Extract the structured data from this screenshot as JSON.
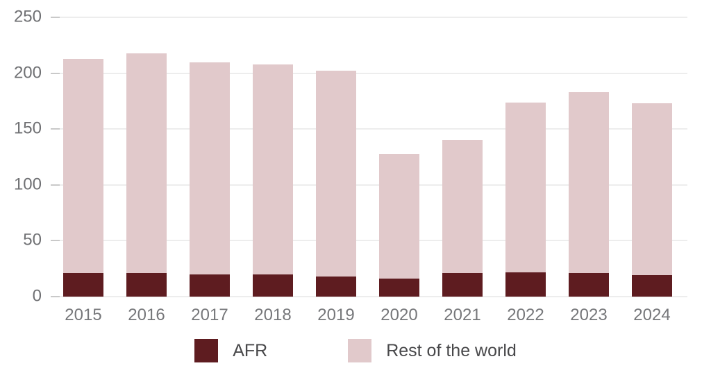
{
  "chart_data": {
    "type": "bar",
    "stacked": true,
    "title": "",
    "xlabel": "",
    "ylabel": "",
    "categories": [
      "2015",
      "2016",
      "2017",
      "2018",
      "2019",
      "2020",
      "2021",
      "2022",
      "2023",
      "2024"
    ],
    "series": [
      {
        "name": "AFR",
        "color": "#5e1c20",
        "values": [
          21,
          21,
          20,
          20,
          18,
          16,
          21,
          22,
          21,
          19
        ]
      },
      {
        "name": "Rest of the world",
        "color": "#e1c9cb",
        "values": [
          192,
          197,
          190,
          188,
          184,
          112,
          119,
          152,
          162,
          154
        ]
      }
    ],
    "totals": [
      213,
      218,
      210,
      208,
      202,
      128,
      140,
      174,
      183,
      173
    ],
    "ylim": [
      0,
      250
    ],
    "yticks": [
      250,
      200,
      150,
      100,
      50,
      0
    ],
    "grid": "horizontal-light",
    "legend_position": "bottom-center"
  },
  "style": {
    "gridline_color": "#ededed",
    "tick_color": "#c9c9c9",
    "axis_label_color": "#6f7073",
    "legend_text_color": "#48484a",
    "background": "#ffffff"
  }
}
